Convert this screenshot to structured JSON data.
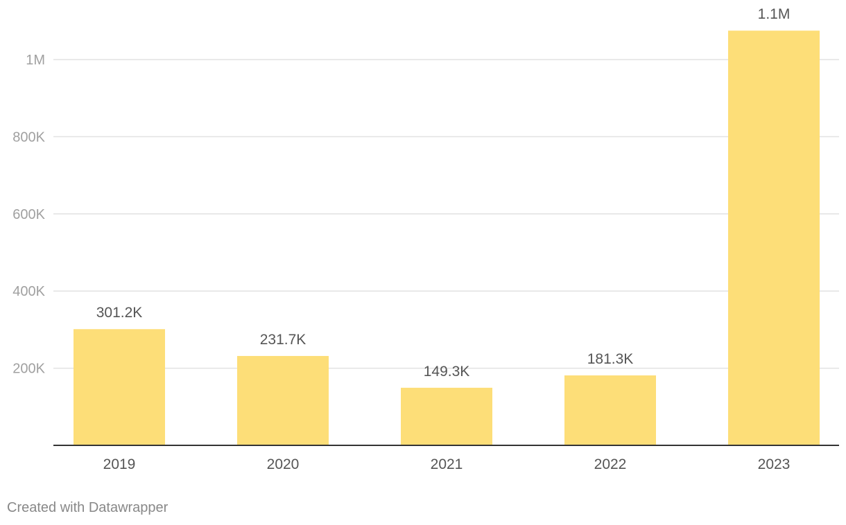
{
  "chart_data": {
    "type": "bar",
    "categories": [
      "2019",
      "2020",
      "2021",
      "2022",
      "2023"
    ],
    "values": [
      301200,
      231700,
      149300,
      181300,
      1075000
    ],
    "value_labels": [
      "301.2K",
      "231.7K",
      "149.3K",
      "181.3K",
      "1.1M"
    ],
    "ylim": [
      0,
      1000000
    ],
    "y_ticks": [
      200000,
      400000,
      600000,
      800000,
      1000000
    ],
    "y_tick_labels": [
      "200K",
      "400K",
      "600K",
      "800K",
      "1M"
    ],
    "grid": true,
    "bar_color": "#fdde78",
    "title": "",
    "xlabel": "",
    "ylabel": ""
  },
  "footer": {
    "credit": "Created with Datawrapper"
  }
}
